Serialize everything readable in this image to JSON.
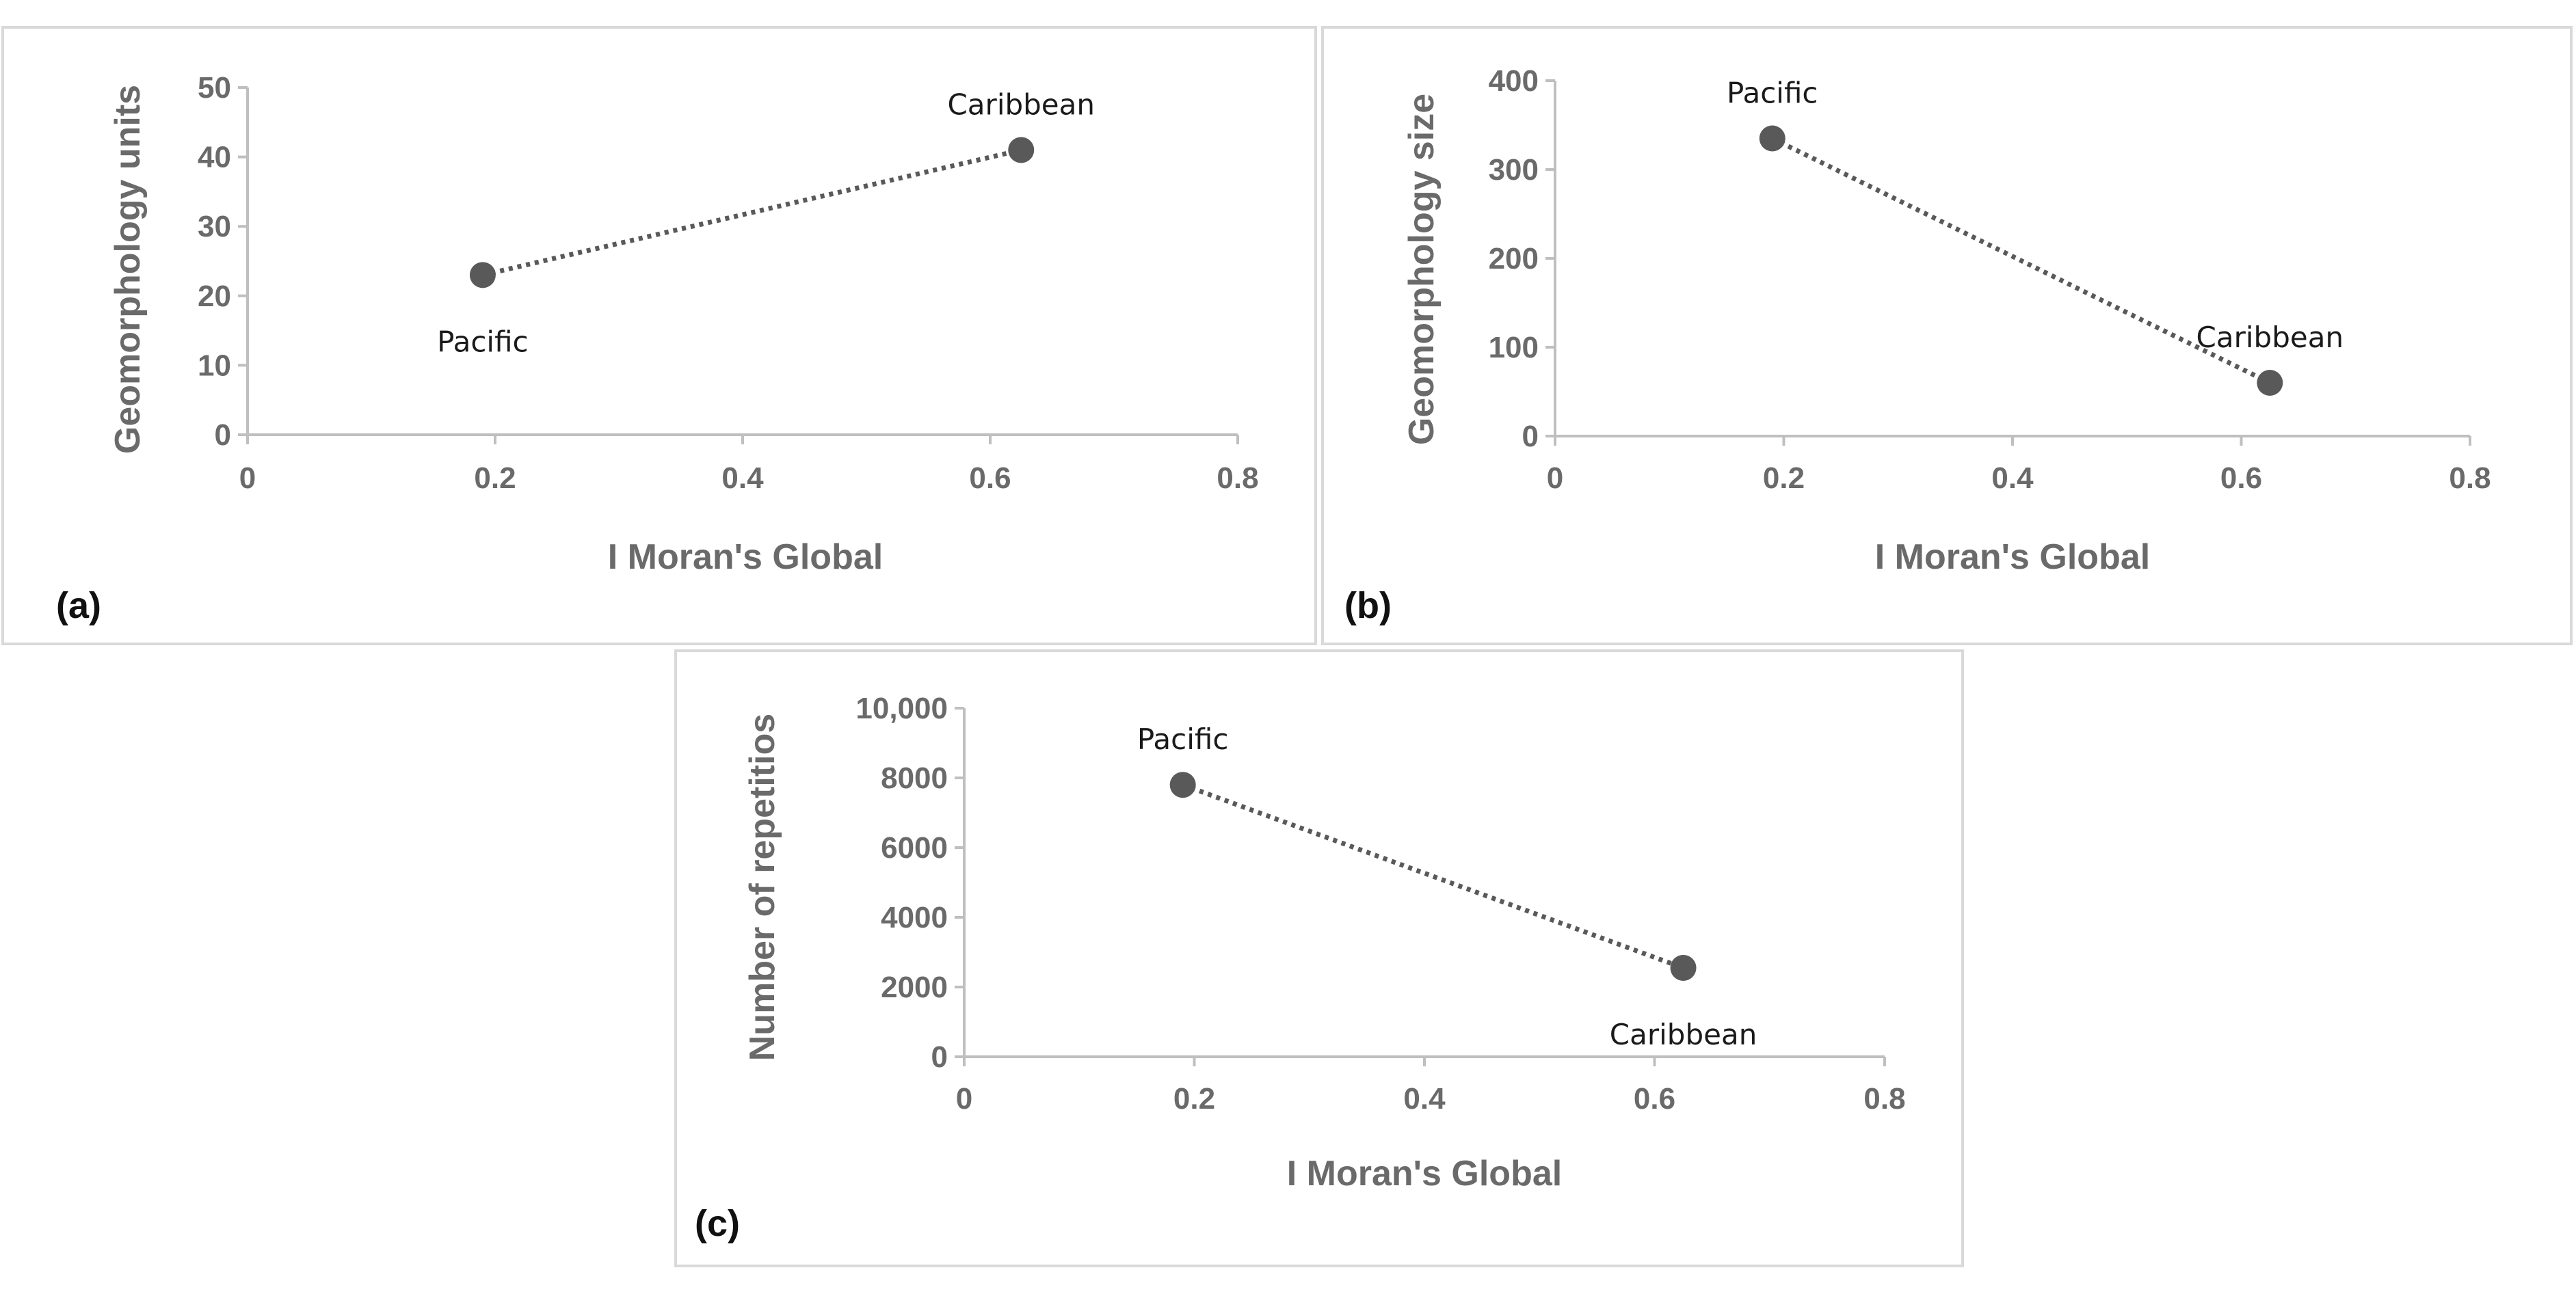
{
  "colors": {
    "axis": "#bfbfbf",
    "marker": "#595959",
    "trend": "#595959",
    "text": "#6a6a6a"
  },
  "chart_data": [
    {
      "type": "scatter",
      "panel_label": "(a)",
      "xlabel": "I Moran's Global",
      "ylabel": "Geomorphology units",
      "xlim": [
        0,
        0.8
      ],
      "ylim": [
        0,
        50
      ],
      "x_ticks": [
        "0",
        "0.2",
        "0.4",
        "0.6",
        "0.8"
      ],
      "y_ticks": [
        "0",
        "10",
        "20",
        "30",
        "40",
        "50"
      ],
      "points": [
        {
          "name": "Pacific",
          "x": 0.19,
          "y": 23,
          "label_pos": "below"
        },
        {
          "name": "Caribbean",
          "x": 0.625,
          "y": 41,
          "label_pos": "above"
        }
      ],
      "trendline": "dotted"
    },
    {
      "type": "scatter",
      "panel_label": "(b)",
      "xlabel": "I Moran's Global",
      "ylabel": "Geomorphology size",
      "xlim": [
        0,
        0.8
      ],
      "ylim": [
        0,
        400
      ],
      "x_ticks": [
        "0",
        "0.2",
        "0.4",
        "0.6",
        "0.8"
      ],
      "y_ticks": [
        "0",
        "100",
        "200",
        "300",
        "400"
      ],
      "points": [
        {
          "name": "Pacific",
          "x": 0.19,
          "y": 335,
          "label_pos": "above"
        },
        {
          "name": "Caribbean",
          "x": 0.625,
          "y": 60,
          "label_pos": "above"
        }
      ],
      "trendline": "dotted"
    },
    {
      "type": "scatter",
      "panel_label": "(c)",
      "xlabel": "I Moran's Global",
      "ylabel": "Number of repetitios",
      "xlim": [
        0,
        0.8
      ],
      "ylim": [
        0,
        10000
      ],
      "x_ticks": [
        "0",
        "0.2",
        "0.4",
        "0.6",
        "0.8"
      ],
      "y_ticks": [
        "0",
        "2000",
        "4000",
        "6000",
        "8000",
        "10,000"
      ],
      "points": [
        {
          "name": "Pacific",
          "x": 0.19,
          "y": 7800,
          "label_pos": "above"
        },
        {
          "name": "Caribbean",
          "x": 0.625,
          "y": 2550,
          "label_pos": "below"
        }
      ],
      "trendline": "dotted"
    }
  ]
}
